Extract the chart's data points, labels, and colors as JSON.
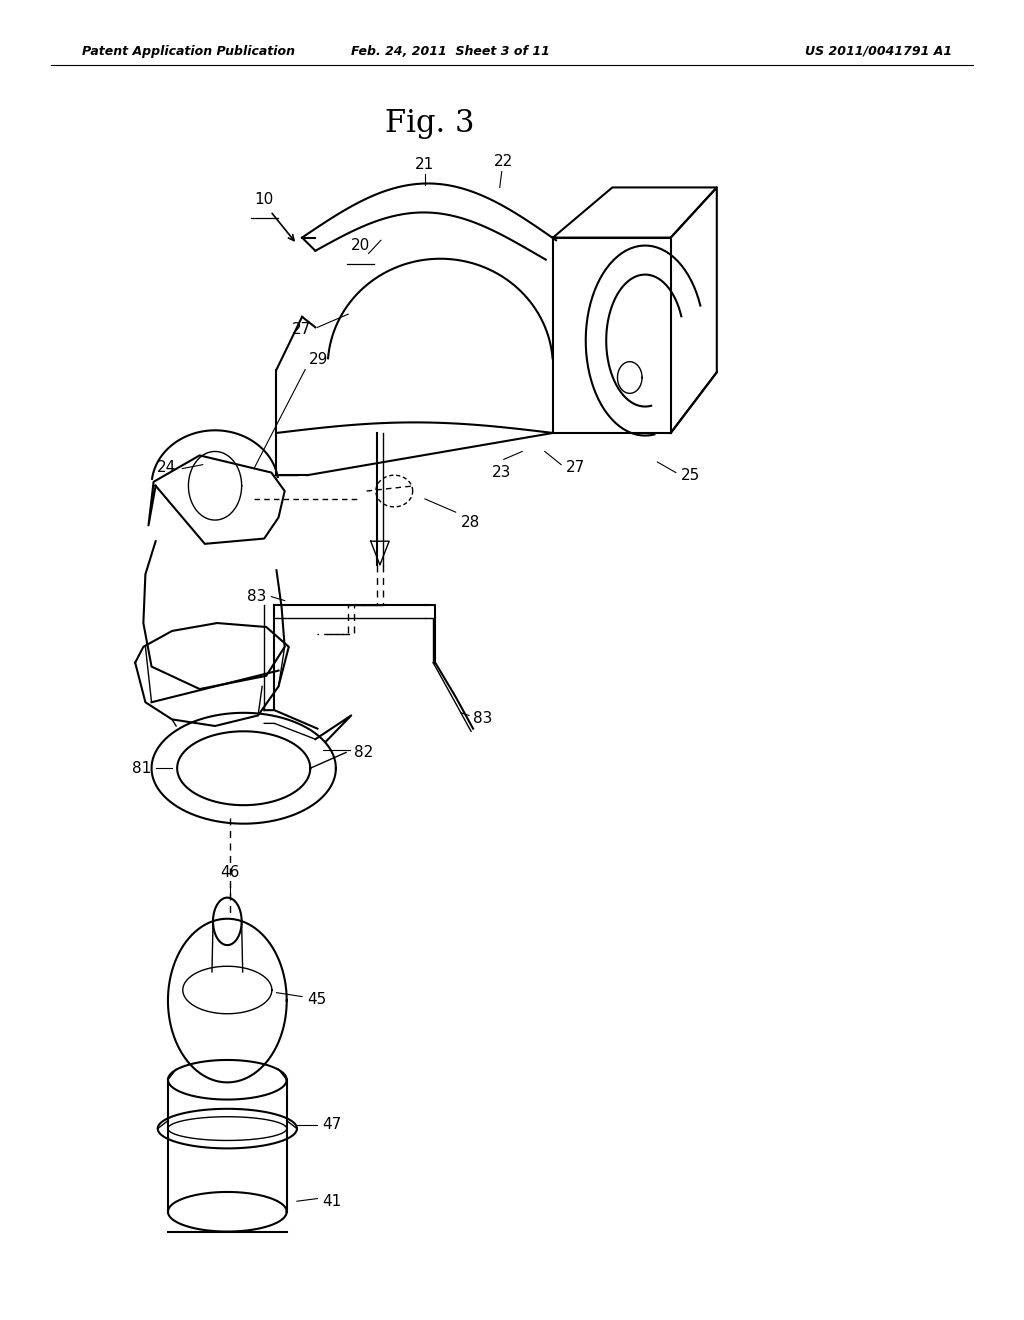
{
  "title": "Fig. 3",
  "header_left": "Patent Application Publication",
  "header_center": "Feb. 24, 2011  Sheet 3 of 11",
  "header_right": "US 2011/0041791 A1",
  "background_color": "#ffffff",
  "line_color": "#000000",
  "fig_width": 10.24,
  "fig_height": 13.2
}
